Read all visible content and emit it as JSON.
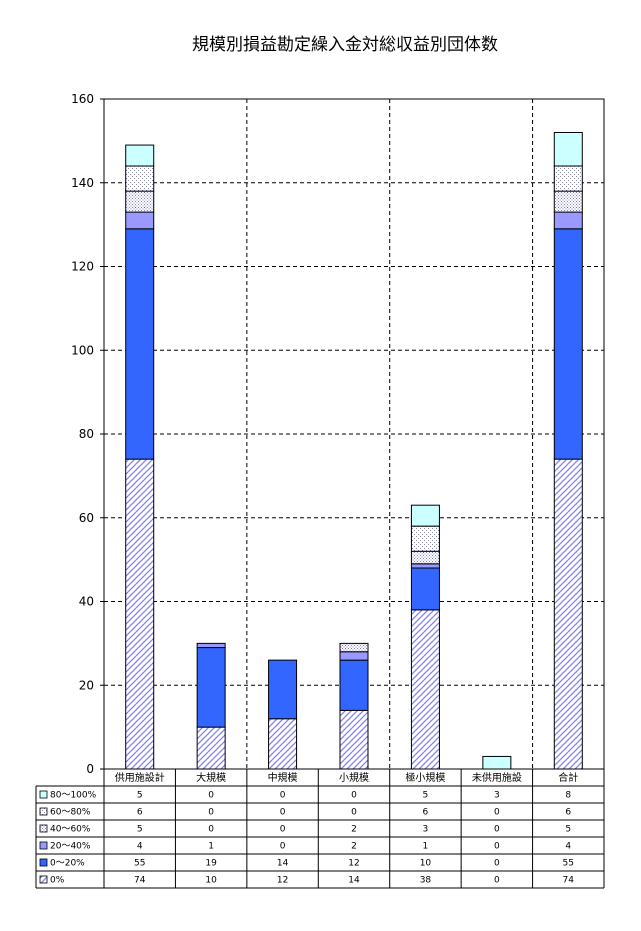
{
  "chart_data": {
    "type": "bar",
    "stacked": true,
    "title": "規模別損益勘定繰入金対総収益別団体数",
    "xlabel": "",
    "ylabel": "",
    "ylim": [
      0,
      160
    ],
    "yticks": [
      0,
      20,
      40,
      60,
      80,
      100,
      120,
      140,
      160
    ],
    "grid": true,
    "legend_position": "data-table-left",
    "categories": [
      "供用施設計",
      "大規模",
      "中規模",
      "小規模",
      "極小規模",
      "未供用施設",
      "合計"
    ],
    "series": [
      {
        "name": "0%",
        "values": [
          74,
          10,
          12,
          14,
          38,
          0,
          74
        ],
        "color": "#e6e6ff",
        "pattern": "diagonal-hatch"
      },
      {
        "name": "0～20%",
        "values": [
          55,
          19,
          14,
          12,
          10,
          0,
          55
        ],
        "color": "#3366ff",
        "pattern": "solid"
      },
      {
        "name": "20～40%",
        "values": [
          4,
          1,
          0,
          2,
          1,
          0,
          4
        ],
        "color": "#9999ff",
        "pattern": "solid"
      },
      {
        "name": "40～60%",
        "values": [
          5,
          0,
          0,
          2,
          3,
          0,
          5
        ],
        "color": "#d9d9f2",
        "pattern": "dense-dots"
      },
      {
        "name": "60～80%",
        "values": [
          6,
          0,
          0,
          0,
          6,
          0,
          6
        ],
        "color": "#f2f2f2",
        "pattern": "sparse-dots"
      },
      {
        "name": "80～100%",
        "values": [
          5,
          0,
          0,
          0,
          5,
          3,
          8
        ],
        "color": "#ccffff",
        "pattern": "solid"
      }
    ]
  }
}
